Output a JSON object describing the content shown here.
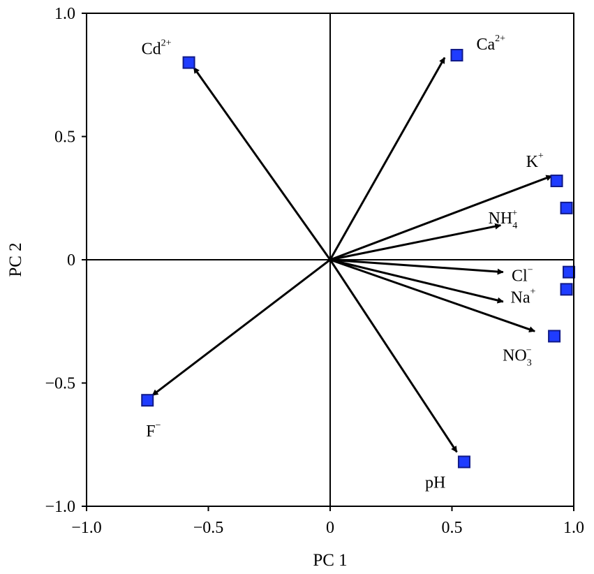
{
  "chart_data": {
    "type": "scatter",
    "title": "",
    "xlabel": "PC 1",
    "ylabel": "PC 2",
    "xlim": [
      -1.0,
      1.0
    ],
    "ylim": [
      -1.0,
      1.0
    ],
    "grid": false,
    "legend": "none",
    "xticks": [
      -1.0,
      -0.5,
      0,
      0.5,
      1.0
    ],
    "yticks": [
      -1.0,
      -0.5,
      0,
      0.5,
      1.0
    ],
    "xtick_labels": [
      "−1.0",
      "−0.5",
      "0",
      "0.5",
      "1.0"
    ],
    "ytick_labels": [
      "−1.0",
      "−0.5",
      "0",
      "0.5",
      "1.0"
    ],
    "marker_color": "#1f3cff",
    "marker_edge_color": "#111a88",
    "arrow_color": "#000000",
    "points": [
      {
        "name": "Cd",
        "sup": "2+",
        "sub": "",
        "x": -0.58,
        "y": 0.8,
        "arrow": [
          -0.56,
          0.78
        ]
      },
      {
        "name": "Ca",
        "sup": "2+",
        "sub": "",
        "x": 0.52,
        "y": 0.83,
        "arrow": [
          0.47,
          0.82
        ]
      },
      {
        "name": "K",
        "sup": "+",
        "sub": "",
        "x": 0.93,
        "y": 0.32,
        "arrow": [
          0.91,
          0.34
        ]
      },
      {
        "name": "NH",
        "sup": "+",
        "sub": "4",
        "x": 0.97,
        "y": 0.21,
        "arrow": [
          0.7,
          0.14
        ]
      },
      {
        "name": "Cl",
        "sup": "−",
        "sub": "",
        "x": 0.98,
        "y": -0.05,
        "arrow": [
          0.71,
          -0.05
        ]
      },
      {
        "name": "Na",
        "sup": "+",
        "sub": "",
        "x": 0.97,
        "y": -0.12,
        "arrow": [
          0.71,
          -0.17
        ]
      },
      {
        "name": "NO",
        "sup": "−",
        "sub": "3",
        "x": 0.92,
        "y": -0.31,
        "arrow": [
          0.84,
          -0.29
        ]
      },
      {
        "name": "F",
        "sup": "−",
        "sub": "",
        "x": -0.75,
        "y": -0.57,
        "arrow": [
          -0.73,
          -0.55
        ]
      },
      {
        "name": "pH",
        "sup": "",
        "sub": "",
        "x": 0.55,
        "y": -0.82,
        "arrow": [
          0.52,
          -0.78
        ]
      }
    ]
  }
}
